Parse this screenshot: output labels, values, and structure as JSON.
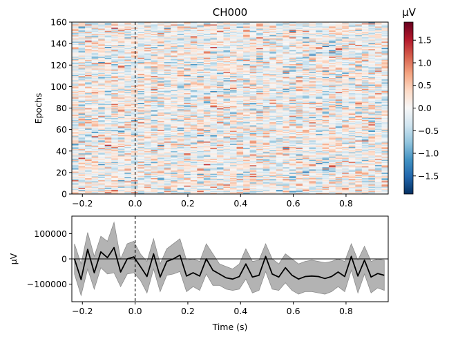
{
  "chart_data": [
    {
      "type": "heatmap",
      "title": "CH000",
      "xlabel": "",
      "ylabel": "Epochs",
      "xlim": [
        -0.24,
        0.96
      ],
      "ylim": [
        0,
        160
      ],
      "xticks": [
        "−0.2",
        "0.0",
        "0.2",
        "0.4",
        "0.6",
        "0.8"
      ],
      "xtick_values": [
        -0.2,
        0.0,
        0.2,
        0.4,
        0.6,
        0.8
      ],
      "yticks": [
        "0",
        "20",
        "40",
        "60",
        "80",
        "100",
        "120",
        "140",
        "160"
      ],
      "ytick_values": [
        0,
        20,
        40,
        60,
        80,
        100,
        120,
        140,
        160
      ],
      "event_marker_time": 0.0,
      "n_epochs": 160,
      "n_times": 48,
      "colormap": "RdBu_r",
      "colorbar": {
        "label": "µV",
        "vmin": -1.9,
        "vmax": 1.9,
        "ticks": [
          "−1.5",
          "−1.0",
          "−0.5",
          "0.0",
          "0.5",
          "1.0",
          "1.5"
        ],
        "tick_values": [
          -1.5,
          -1.0,
          -0.5,
          0.0,
          0.5,
          1.0,
          1.5
        ]
      }
    },
    {
      "type": "line",
      "title": "",
      "xlabel": "Time (s)",
      "ylabel": "µV",
      "xlim": [
        -0.24,
        0.96
      ],
      "ylim": [
        -170000,
        170000
      ],
      "xticks": [
        "−0.2",
        "0.0",
        "0.2",
        "0.4",
        "0.6",
        "0.8"
      ],
      "xtick_values": [
        -0.2,
        0.0,
        0.2,
        0.4,
        0.6,
        0.8
      ],
      "yticks": [
        "100000",
        "0",
        "−100000"
      ],
      "ytick_values": [
        100000,
        0,
        -100000
      ],
      "event_marker_time": 0.0,
      "zero_line": 0,
      "series": [
        {
          "name": "mean",
          "color": "#000000",
          "x": [
            -0.23,
            -0.205,
            -0.18,
            -0.155,
            -0.13,
            -0.105,
            -0.08,
            -0.055,
            -0.03,
            -0.005,
            0.02,
            0.045,
            0.07,
            0.095,
            0.12,
            0.145,
            0.17,
            0.195,
            0.22,
            0.245,
            0.27,
            0.295,
            0.32,
            0.345,
            0.37,
            0.395,
            0.42,
            0.445,
            0.47,
            0.495,
            0.52,
            0.545,
            0.57,
            0.595,
            0.62,
            0.645,
            0.67,
            0.695,
            0.72,
            0.745,
            0.77,
            0.795,
            0.82,
            0.845,
            0.87,
            0.895,
            0.92,
            0.945
          ],
          "values": [
            0,
            -82000,
            38000,
            -55000,
            28000,
            5000,
            45000,
            -52000,
            0,
            8000,
            -30000,
            -70000,
            20000,
            -72000,
            -10000,
            0,
            15000,
            -68000,
            -55000,
            -68000,
            0,
            -45000,
            -60000,
            -75000,
            -80000,
            -70000,
            -20000,
            -72000,
            -65000,
            10000,
            -60000,
            -72000,
            -35000,
            -65000,
            -80000,
            -70000,
            -68000,
            -70000,
            -78000,
            -70000,
            -52000,
            -70000,
            10000,
            -68000,
            -5000,
            -72000,
            -58000,
            -65000
          ]
        },
        {
          "name": "upper",
          "values": [
            60000,
            -20000,
            105000,
            10000,
            90000,
            70000,
            145000,
            0,
            60000,
            70000,
            20000,
            -10000,
            80000,
            -20000,
            40000,
            60000,
            80000,
            -5000,
            0,
            -10000,
            60000,
            20000,
            -20000,
            -30000,
            -40000,
            -20000,
            40000,
            -10000,
            -5000,
            60000,
            0,
            -20000,
            20000,
            0,
            -20000,
            -10000,
            -5000,
            -10000,
            -15000,
            -10000,
            0,
            -10000,
            60000,
            -5000,
            50000,
            -10000,
            0,
            -5000
          ]
        },
        {
          "name": "lower",
          "values": [
            -60000,
            -145000,
            -40000,
            -120000,
            -35000,
            -60000,
            -55000,
            -110000,
            -60000,
            -55000,
            -85000,
            -135000,
            -40000,
            -130000,
            -65000,
            -60000,
            -50000,
            -130000,
            -110000,
            -125000,
            -60000,
            -105000,
            -105000,
            -120000,
            -125000,
            -120000,
            -80000,
            -135000,
            -125000,
            -50000,
            -120000,
            -125000,
            -95000,
            -125000,
            -140000,
            -130000,
            -130000,
            -135000,
            -140000,
            -130000,
            -110000,
            -130000,
            -45000,
            -135000,
            -60000,
            -135000,
            -115000,
            -125000
          ]
        }
      ],
      "ci_color": "#b3b3b3"
    }
  ]
}
